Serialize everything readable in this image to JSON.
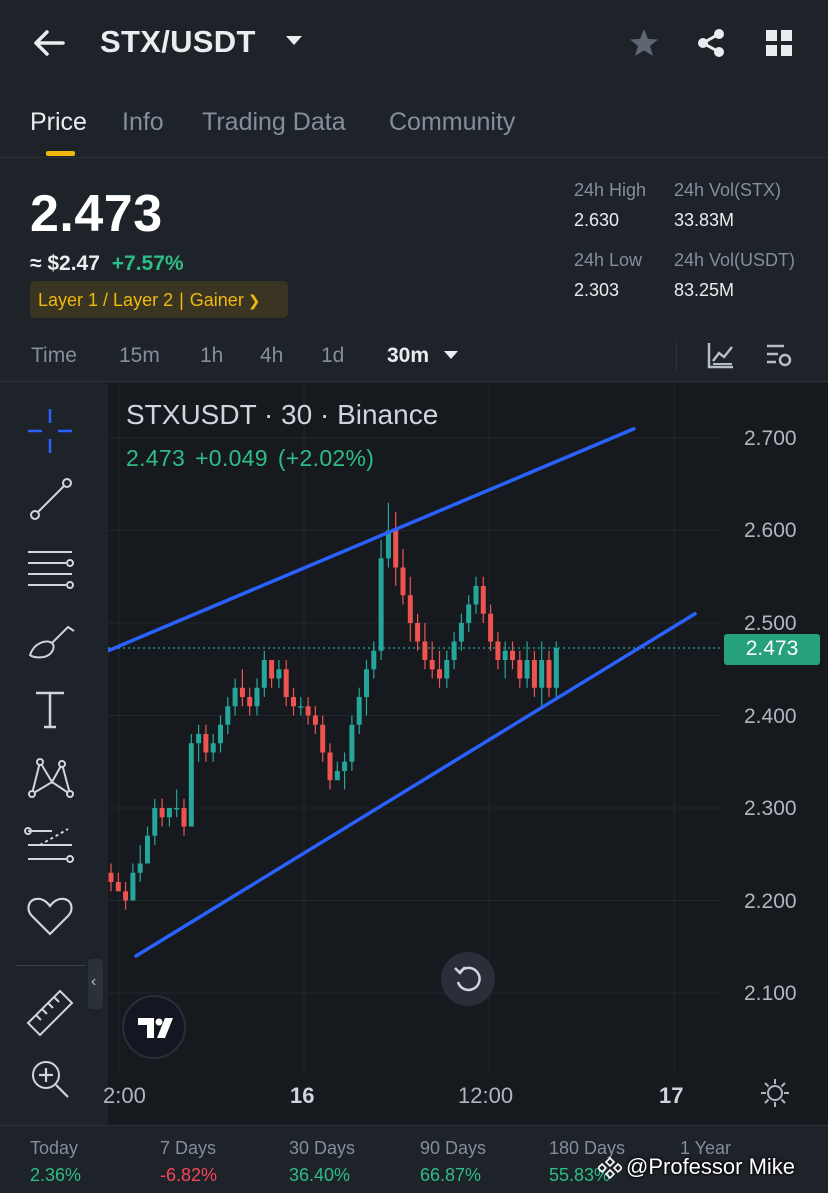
{
  "header": {
    "pair": "STX/USDT",
    "icons": [
      "back-arrow-icon",
      "star-icon",
      "share-icon",
      "grid-icon"
    ]
  },
  "tabs": [
    {
      "label": "Price",
      "active": true
    },
    {
      "label": "Info",
      "active": false
    },
    {
      "label": "Trading Data",
      "active": false
    },
    {
      "label": "Community",
      "active": false
    }
  ],
  "ticker": {
    "last_price": "2.473",
    "usd_price": "≈ $2.47",
    "change_pct": "+7.57%",
    "tags": [
      "Layer 1 / Layer 2",
      "Gainer"
    ],
    "high_label": "24h High",
    "high_value": "2.630",
    "low_label": "24h Low",
    "low_value": "2.303",
    "vol_base_label": "24h Vol(STX)",
    "vol_base_value": "33.83M",
    "vol_quote_label": "24h Vol(USDT)",
    "vol_quote_value": "83.25M"
  },
  "intervals": {
    "items": [
      "Time",
      "15m",
      "1h",
      "4h",
      "1d",
      "30m"
    ],
    "selected": "30m",
    "icons": [
      "indicator-icon",
      "chart-settings-icon"
    ]
  },
  "toolbar": {
    "tools": [
      "crosshair-icon",
      "trendline-icon",
      "fib-lines-icon",
      "brush-icon",
      "text-icon",
      "pattern-icon",
      "forecast-lines-icon",
      "favorite-heart-icon",
      "ruler-icon",
      "zoom-in-icon"
    ]
  },
  "chart": {
    "title": "STXUSDT · 30 · Binance",
    "last": "2.473",
    "change": "+0.049",
    "change_pct": "(+2.02%)",
    "price_label": "2.473",
    "y_ticks": [
      "2.700",
      "2.600",
      "2.500",
      "2.400",
      "2.300",
      "2.200",
      "2.100"
    ],
    "x_ticks": [
      "2:00",
      "16",
      "12:00",
      "17"
    ],
    "colors": {
      "up": "#26a69a",
      "down": "#ef5350",
      "channel": "#2962ff",
      "background": "#161a1e"
    }
  },
  "chart_data": {
    "type": "candlestick",
    "title": "STXUSDT · 30 · Binance",
    "ylim": [
      2.05,
      2.75
    ],
    "y_ticks": [
      2.7,
      2.6,
      2.5,
      2.4,
      2.3,
      2.2,
      2.1
    ],
    "x_ticks": [
      "2:00",
      "16",
      "12:00",
      "17"
    ],
    "last_price": 2.473,
    "ohlc": [
      [
        2.23,
        2.24,
        2.21,
        2.22
      ],
      [
        2.22,
        2.23,
        2.21,
        2.21
      ],
      [
        2.21,
        2.22,
        2.19,
        2.2
      ],
      [
        2.2,
        2.24,
        2.2,
        2.23
      ],
      [
        2.23,
        2.26,
        2.22,
        2.24
      ],
      [
        2.24,
        2.28,
        2.24,
        2.27
      ],
      [
        2.27,
        2.31,
        2.26,
        2.3
      ],
      [
        2.3,
        2.31,
        2.28,
        2.29
      ],
      [
        2.29,
        2.3,
        2.28,
        2.3
      ],
      [
        2.3,
        2.32,
        2.29,
        2.3
      ],
      [
        2.3,
        2.31,
        2.27,
        2.28
      ],
      [
        2.28,
        2.38,
        2.28,
        2.37
      ],
      [
        2.37,
        2.39,
        2.35,
        2.38
      ],
      [
        2.38,
        2.39,
        2.35,
        2.36
      ],
      [
        2.36,
        2.38,
        2.35,
        2.37
      ],
      [
        2.37,
        2.4,
        2.36,
        2.39
      ],
      [
        2.39,
        2.42,
        2.38,
        2.41
      ],
      [
        2.41,
        2.44,
        2.4,
        2.43
      ],
      [
        2.43,
        2.45,
        2.41,
        2.42
      ],
      [
        2.42,
        2.43,
        2.4,
        2.41
      ],
      [
        2.41,
        2.44,
        2.4,
        2.43
      ],
      [
        2.43,
        2.47,
        2.42,
        2.46
      ],
      [
        2.46,
        2.46,
        2.43,
        2.44
      ],
      [
        2.44,
        2.46,
        2.43,
        2.45
      ],
      [
        2.45,
        2.46,
        2.41,
        2.42
      ],
      [
        2.42,
        2.43,
        2.4,
        2.41
      ],
      [
        2.41,
        2.42,
        2.4,
        2.41
      ],
      [
        2.41,
        2.42,
        2.39,
        2.4
      ],
      [
        2.4,
        2.41,
        2.38,
        2.39
      ],
      [
        2.39,
        2.4,
        2.35,
        2.36
      ],
      [
        2.36,
        2.37,
        2.32,
        2.33
      ],
      [
        2.33,
        2.35,
        2.33,
        2.34
      ],
      [
        2.34,
        2.36,
        2.32,
        2.35
      ],
      [
        2.35,
        2.4,
        2.34,
        2.39
      ],
      [
        2.39,
        2.43,
        2.38,
        2.42
      ],
      [
        2.42,
        2.46,
        2.4,
        2.45
      ],
      [
        2.45,
        2.48,
        2.44,
        2.47
      ],
      [
        2.47,
        2.59,
        2.46,
        2.57
      ],
      [
        2.57,
        2.63,
        2.56,
        2.6
      ],
      [
        2.6,
        2.62,
        2.54,
        2.56
      ],
      [
        2.56,
        2.58,
        2.52,
        2.53
      ],
      [
        2.53,
        2.55,
        2.48,
        2.5
      ],
      [
        2.5,
        2.51,
        2.47,
        2.48
      ],
      [
        2.48,
        2.5,
        2.45,
        2.46
      ],
      [
        2.46,
        2.48,
        2.44,
        2.45
      ],
      [
        2.45,
        2.47,
        2.43,
        2.44
      ],
      [
        2.44,
        2.47,
        2.43,
        2.46
      ],
      [
        2.46,
        2.49,
        2.45,
        2.48
      ],
      [
        2.48,
        2.51,
        2.47,
        2.5
      ],
      [
        2.5,
        2.53,
        2.49,
        2.52
      ],
      [
        2.52,
        2.55,
        2.51,
        2.54
      ],
      [
        2.54,
        2.55,
        2.5,
        2.51
      ],
      [
        2.51,
        2.52,
        2.47,
        2.48
      ],
      [
        2.48,
        2.49,
        2.45,
        2.46
      ],
      [
        2.46,
        2.48,
        2.44,
        2.47
      ],
      [
        2.47,
        2.48,
        2.45,
        2.46
      ],
      [
        2.46,
        2.47,
        2.43,
        2.44
      ],
      [
        2.44,
        2.48,
        2.43,
        2.46
      ],
      [
        2.46,
        2.47,
        2.42,
        2.43
      ],
      [
        2.43,
        2.48,
        2.41,
        2.46
      ],
      [
        2.46,
        2.47,
        2.42,
        2.43
      ],
      [
        2.43,
        2.48,
        2.42,
        2.473
      ]
    ],
    "channel_lines": [
      {
        "name": "upper",
        "from": 2.47,
        "to": 2.71
      },
      {
        "name": "lower",
        "from": 2.14,
        "to": 2.51
      }
    ]
  },
  "performance": [
    {
      "label": "Today",
      "value": "2.36%",
      "dir": "up"
    },
    {
      "label": "7 Days",
      "value": "-6.82%",
      "dir": "down"
    },
    {
      "label": "30 Days",
      "value": "36.40%",
      "dir": "up"
    },
    {
      "label": "90 Days",
      "value": "66.87%",
      "dir": "up"
    },
    {
      "label": "180 Days",
      "value": "55.83%",
      "dir": "up"
    },
    {
      "label": "1 Year",
      "value": "",
      "dir": "up"
    }
  ],
  "watermark": "@Professor Mike"
}
